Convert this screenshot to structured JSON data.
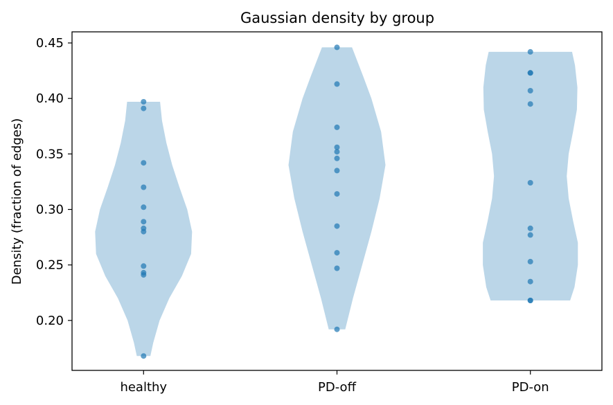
{
  "chart_data": {
    "type": "violin",
    "title": "Gaussian density by group",
    "xlabel": "",
    "ylabel": "Density (fraction of edges)",
    "ylim": [
      0.155,
      0.46
    ],
    "yticks": [
      "0.20",
      "0.25",
      "0.30",
      "0.35",
      "0.40",
      "0.45"
    ],
    "categories": [
      "healthy",
      "PD-off",
      "PD-on"
    ],
    "colors": {
      "violin": "#1f77b4",
      "points": "#1f77b4"
    },
    "grid": false,
    "groups": [
      {
        "name": "healthy",
        "points": [
          0.397,
          0.391,
          0.342,
          0.32,
          0.302,
          0.289,
          0.283,
          0.28,
          0.249,
          0.243,
          0.241,
          0.168
        ],
        "violin_profile": [
          [
            0.168,
            0.14
          ],
          [
            0.18,
            0.2
          ],
          [
            0.2,
            0.33
          ],
          [
            0.22,
            0.53
          ],
          [
            0.24,
            0.79
          ],
          [
            0.26,
            0.98
          ],
          [
            0.28,
            1.0
          ],
          [
            0.3,
            0.9
          ],
          [
            0.32,
            0.74
          ],
          [
            0.34,
            0.59
          ],
          [
            0.36,
            0.47
          ],
          [
            0.38,
            0.38
          ],
          [
            0.397,
            0.34
          ]
        ]
      },
      {
        "name": "PD-off",
        "points": [
          0.446,
          0.413,
          0.374,
          0.356,
          0.352,
          0.346,
          0.335,
          0.314,
          0.285,
          0.261,
          0.247,
          0.192
        ],
        "violin_profile": [
          [
            0.192,
            0.17
          ],
          [
            0.22,
            0.33
          ],
          [
            0.25,
            0.52
          ],
          [
            0.28,
            0.71
          ],
          [
            0.31,
            0.88
          ],
          [
            0.34,
            1.0
          ],
          [
            0.37,
            0.91
          ],
          [
            0.4,
            0.71
          ],
          [
            0.42,
            0.54
          ],
          [
            0.446,
            0.31
          ]
        ]
      },
      {
        "name": "PD-on",
        "points": [
          0.442,
          0.423,
          0.423,
          0.407,
          0.395,
          0.324,
          0.283,
          0.277,
          0.253,
          0.235,
          0.218,
          0.218
        ],
        "violin_profile": [
          [
            0.218,
            0.82
          ],
          [
            0.23,
            0.91
          ],
          [
            0.25,
            0.98
          ],
          [
            0.27,
            0.98
          ],
          [
            0.29,
            0.88
          ],
          [
            0.31,
            0.79
          ],
          [
            0.33,
            0.75
          ],
          [
            0.35,
            0.79
          ],
          [
            0.37,
            0.88
          ],
          [
            0.39,
            0.96
          ],
          [
            0.41,
            0.97
          ],
          [
            0.43,
            0.92
          ],
          [
            0.442,
            0.86
          ]
        ]
      }
    ]
  }
}
